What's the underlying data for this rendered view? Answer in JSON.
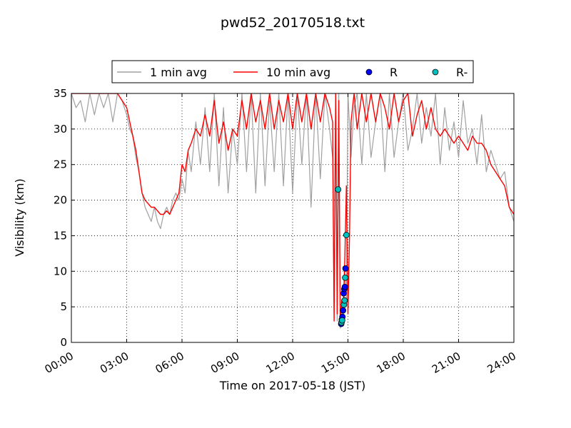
{
  "chart_data": {
    "type": "line",
    "title": "pwd52_20170518.txt",
    "xlabel": "Time on 2017-05-18 (JST)",
    "ylabel": "Visibility (km)",
    "xlim": [
      "00:00",
      "24:00"
    ],
    "ylim": [
      0,
      35
    ],
    "x_ticks": [
      "00:00",
      "03:00",
      "06:00",
      "09:00",
      "12:00",
      "15:00",
      "18:00",
      "21:00",
      "24:00"
    ],
    "y_ticks": [
      0,
      5,
      10,
      15,
      20,
      25,
      30,
      35
    ],
    "grid": true,
    "legend_position": "top-center",
    "series": [
      {
        "name": "1 min avg",
        "kind": "line",
        "color": "#a0a0a0",
        "x": [
          "00:00",
          "00:15",
          "00:30",
          "00:45",
          "01:00",
          "01:15",
          "01:30",
          "01:45",
          "02:00",
          "02:15",
          "02:30",
          "02:45",
          "03:00",
          "03:10",
          "03:20",
          "03:30",
          "03:40",
          "03:50",
          "04:00",
          "04:10",
          "04:20",
          "04:30",
          "04:40",
          "04:50",
          "05:00",
          "05:10",
          "05:20",
          "05:30",
          "05:40",
          "05:50",
          "06:00",
          "06:10",
          "06:20",
          "06:30",
          "06:45",
          "07:00",
          "07:15",
          "07:30",
          "07:45",
          "08:00",
          "08:15",
          "08:30",
          "08:45",
          "09:00",
          "09:15",
          "09:30",
          "09:45",
          "10:00",
          "10:15",
          "10:30",
          "10:45",
          "11:00",
          "11:15",
          "11:30",
          "11:45",
          "12:00",
          "12:15",
          "12:30",
          "12:45",
          "13:00",
          "13:15",
          "13:30",
          "13:45",
          "14:00",
          "14:10",
          "14:15",
          "14:20",
          "14:25",
          "14:30",
          "14:35",
          "14:40",
          "14:45",
          "14:50",
          "14:55",
          "15:00",
          "15:10",
          "15:20",
          "15:30",
          "15:45",
          "16:00",
          "16:15",
          "16:30",
          "16:45",
          "17:00",
          "17:15",
          "17:30",
          "17:45",
          "18:00",
          "18:15",
          "18:30",
          "18:45",
          "19:00",
          "19:15",
          "19:30",
          "19:45",
          "20:00",
          "20:15",
          "20:30",
          "20:45",
          "21:00",
          "21:15",
          "21:30",
          "21:45",
          "22:00",
          "22:15",
          "22:30",
          "22:45",
          "23:00",
          "23:15",
          "23:30",
          "23:45",
          "24:00"
        ],
        "y": [
          35,
          33,
          34,
          31,
          35,
          32,
          35,
          33,
          35,
          31,
          35,
          34,
          32,
          30,
          29,
          26,
          24,
          21,
          19,
          18,
          17,
          19,
          17,
          16,
          18,
          19,
          18,
          20,
          21,
          20,
          23,
          21,
          27,
          24,
          31,
          25,
          33,
          24,
          35,
          22,
          33,
          21,
          30,
          25,
          35,
          24,
          35,
          21,
          35,
          22,
          34,
          24,
          35,
          22,
          35,
          21,
          35,
          25,
          35,
          19,
          35,
          23,
          35,
          30,
          26,
          4,
          35,
          3,
          35,
          2,
          4,
          3,
          10,
          6,
          35,
          26,
          33,
          35,
          25,
          35,
          26,
          31,
          35,
          24,
          35,
          26,
          31,
          35,
          27,
          30,
          35,
          28,
          33,
          29,
          35,
          25,
          33,
          27,
          31,
          26,
          34,
          28,
          30,
          25,
          32,
          24,
          27,
          25,
          23,
          24,
          19,
          17
        ]
      },
      {
        "name": "10 min avg",
        "kind": "line",
        "color": "#ff0000",
        "x": [
          "00:00",
          "00:30",
          "01:00",
          "01:30",
          "02:00",
          "02:30",
          "03:00",
          "03:10",
          "03:20",
          "03:30",
          "03:40",
          "03:50",
          "04:00",
          "04:10",
          "04:20",
          "04:30",
          "04:40",
          "04:50",
          "05:00",
          "05:10",
          "05:20",
          "05:30",
          "05:40",
          "05:50",
          "06:00",
          "06:10",
          "06:20",
          "06:30",
          "06:45",
          "07:00",
          "07:15",
          "07:30",
          "07:45",
          "08:00",
          "08:15",
          "08:30",
          "08:45",
          "09:00",
          "09:15",
          "09:30",
          "09:45",
          "10:00",
          "10:15",
          "10:30",
          "10:45",
          "11:00",
          "11:15",
          "11:30",
          "11:45",
          "12:00",
          "12:15",
          "12:30",
          "12:45",
          "13:00",
          "13:15",
          "13:30",
          "13:45",
          "14:00",
          "14:10",
          "14:15",
          "14:20",
          "14:25",
          "14:30",
          "14:35",
          "14:40",
          "14:45",
          "14:50",
          "14:55",
          "15:00",
          "15:05",
          "15:10",
          "15:20",
          "15:30",
          "15:45",
          "16:00",
          "16:15",
          "16:30",
          "16:45",
          "17:00",
          "17:15",
          "17:30",
          "17:45",
          "18:00",
          "18:15",
          "18:30",
          "18:45",
          "19:00",
          "19:15",
          "19:30",
          "19:45",
          "20:00",
          "20:15",
          "20:30",
          "20:45",
          "21:00",
          "21:15",
          "21:30",
          "21:45",
          "22:00",
          "22:15",
          "22:30",
          "22:45",
          "23:00",
          "23:15",
          "23:30",
          "23:45",
          "24:00"
        ],
        "y": [
          35,
          35,
          35,
          35,
          35,
          35,
          33,
          31,
          29,
          27,
          24,
          21,
          20,
          19.5,
          19,
          19,
          18.5,
          18,
          18,
          18.5,
          18,
          19,
          20,
          21,
          25,
          24,
          27,
          28,
          30,
          29,
          32,
          29,
          34,
          28,
          31,
          27,
          30,
          29,
          34,
          30,
          35,
          31,
          34,
          30,
          35,
          30,
          34,
          31,
          35,
          30,
          35,
          31,
          35,
          30,
          35,
          31,
          35,
          33,
          31,
          3,
          35,
          4,
          34,
          3,
          6,
          5,
          12,
          22,
          4,
          15,
          31,
          35,
          30,
          35,
          31,
          35,
          31,
          35,
          33,
          30,
          35,
          31,
          34,
          35,
          29,
          32,
          34,
          30,
          33,
          30,
          29,
          30,
          29,
          28,
          29,
          28,
          27,
          29,
          28,
          28,
          27,
          25,
          24,
          23,
          22,
          19,
          18
        ]
      },
      {
        "name": "R",
        "kind": "scatter",
        "color": "#0000ff",
        "x": [
          "14:38",
          "14:40",
          "14:42",
          "14:44",
          "14:46",
          "14:48",
          "14:50",
          "14:52"
        ],
        "y": [
          2.6,
          3.2,
          3.6,
          4.5,
          6.9,
          7.5,
          7.8,
          10.4
        ]
      },
      {
        "name": "R-",
        "kind": "scatter",
        "color": "#00bfbf",
        "x": [
          "14:28",
          "14:39",
          "14:41",
          "14:47",
          "14:49",
          "14:51",
          "14:55"
        ],
        "y": [
          21.5,
          2.8,
          3.1,
          5.3,
          5.9,
          9.1,
          15.1
        ]
      }
    ]
  }
}
